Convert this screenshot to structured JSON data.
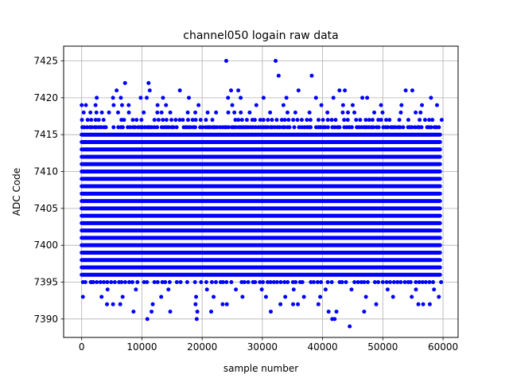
{
  "chart_data": {
    "type": "scatter",
    "title": "channel050 logain raw data",
    "xlabel": "sample number",
    "ylabel": "ADC Code",
    "xlim": [
      -3000,
      62500
    ],
    "ylim": [
      7387.5,
      7427
    ],
    "xticks": [
      0,
      10000,
      20000,
      30000,
      40000,
      50000,
      60000
    ],
    "yticks": [
      7390,
      7395,
      7400,
      7405,
      7410,
      7415,
      7420,
      7425
    ],
    "grid": true,
    "marker_color": "#0000ff",
    "series": [
      {
        "x_start": 0,
        "x_end": 59500,
        "dense_y_min": 7396,
        "dense_y_max": 7415,
        "values": [
          [
            24000,
            7425
          ],
          [
            32200,
            7425
          ],
          [
            32700,
            7423
          ],
          [
            38200,
            7423
          ],
          [
            7200,
            7422
          ],
          [
            11100,
            7422
          ],
          [
            5800,
            7421
          ],
          [
            11300,
            7421
          ],
          [
            16300,
            7421
          ],
          [
            24800,
            7421
          ],
          [
            26000,
            7421
          ],
          [
            36000,
            7421
          ],
          [
            42800,
            7421
          ],
          [
            43700,
            7421
          ],
          [
            53800,
            7421
          ],
          [
            54900,
            7421
          ],
          [
            2500,
            7420
          ],
          [
            5200,
            7420
          ],
          [
            6500,
            7420
          ],
          [
            9800,
            7420
          ],
          [
            10800,
            7420
          ],
          [
            13500,
            7420
          ],
          [
            17800,
            7420
          ],
          [
            24300,
            7420
          ],
          [
            26400,
            7420
          ],
          [
            30200,
            7420
          ],
          [
            34000,
            7420
          ],
          [
            38900,
            7420
          ],
          [
            41800,
            7420
          ],
          [
            46600,
            7420
          ],
          [
            47400,
            7420
          ],
          [
            58000,
            7420
          ],
          [
            0,
            7419
          ],
          [
            700,
            7419
          ],
          [
            2300,
            7419
          ],
          [
            5300,
            7419
          ],
          [
            6700,
            7419
          ],
          [
            7800,
            7419
          ],
          [
            12600,
            7419
          ],
          [
            14000,
            7419
          ],
          [
            19400,
            7419
          ],
          [
            25000,
            7419
          ],
          [
            29000,
            7419
          ],
          [
            33500,
            7419
          ],
          [
            39800,
            7419
          ],
          [
            43400,
            7419
          ],
          [
            45000,
            7419
          ],
          [
            49700,
            7419
          ],
          [
            53100,
            7419
          ],
          [
            56500,
            7419
          ],
          [
            59000,
            7419
          ],
          [
            1700,
            7395
          ],
          [
            4300,
            7394
          ],
          [
            9000,
            7394
          ],
          [
            14400,
            7394
          ],
          [
            20800,
            7394
          ],
          [
            25600,
            7394
          ],
          [
            29900,
            7394
          ],
          [
            35200,
            7394
          ],
          [
            40500,
            7394
          ],
          [
            44800,
            7394
          ],
          [
            50800,
            7394
          ],
          [
            55500,
            7394
          ],
          [
            58500,
            7394
          ],
          [
            200,
            7393
          ],
          [
            3300,
            7393
          ],
          [
            6800,
            7393
          ],
          [
            13200,
            7393
          ],
          [
            19000,
            7393
          ],
          [
            21900,
            7393
          ],
          [
            26700,
            7393
          ],
          [
            30600,
            7393
          ],
          [
            33800,
            7393
          ],
          [
            36900,
            7393
          ],
          [
            39600,
            7393
          ],
          [
            47200,
            7393
          ],
          [
            51700,
            7393
          ],
          [
            54800,
            7393
          ],
          [
            59300,
            7393
          ],
          [
            4200,
            7392
          ],
          [
            5200,
            7392
          ],
          [
            6400,
            7392
          ],
          [
            11800,
            7392
          ],
          [
            18900,
            7392
          ],
          [
            23400,
            7392
          ],
          [
            24100,
            7392
          ],
          [
            33000,
            7392
          ],
          [
            35100,
            7392
          ],
          [
            35900,
            7392
          ],
          [
            39300,
            7392
          ],
          [
            48900,
            7392
          ],
          [
            55900,
            7392
          ],
          [
            56700,
            7392
          ],
          [
            57800,
            7392
          ],
          [
            8600,
            7391
          ],
          [
            11600,
            7391
          ],
          [
            14700,
            7391
          ],
          [
            19200,
            7391
          ],
          [
            21500,
            7391
          ],
          [
            31400,
            7391
          ],
          [
            41000,
            7391
          ],
          [
            42300,
            7391
          ],
          [
            46900,
            7391
          ],
          [
            10900,
            7390
          ],
          [
            19100,
            7390
          ],
          [
            41600,
            7390
          ],
          [
            42000,
            7390
          ],
          [
            44500,
            7389
          ]
        ]
      }
    ]
  }
}
